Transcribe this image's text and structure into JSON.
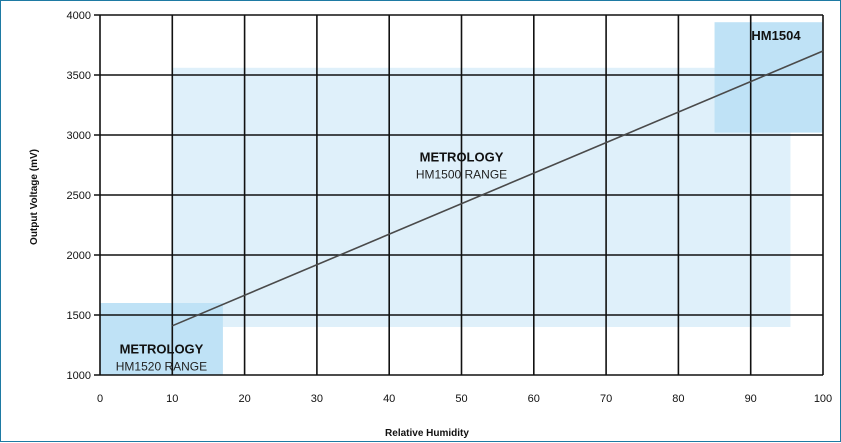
{
  "chart_data": {
    "type": "line",
    "xlabel": "Relative Humidity",
    "ylabel": "Output Voltage (mV)",
    "xlim": [
      0,
      100
    ],
    "ylim": [
      1000,
      4000
    ],
    "x_ticks": [
      0,
      10,
      20,
      30,
      40,
      50,
      60,
      70,
      80,
      90,
      100
    ],
    "y_ticks": [
      1000,
      1500,
      2000,
      2500,
      3000,
      3500,
      4000
    ],
    "grid": true,
    "series": [
      {
        "x": [
          10,
          100
        ],
        "y": [
          1410,
          3700
        ],
        "color": "#4a4a4a"
      }
    ],
    "regions": [
      {
        "x_range": [
          10,
          95.5
        ],
        "y_range": [
          1400,
          3560
        ],
        "label_bold": "METROLOGY",
        "label": "HM1500 RANGE",
        "label_x": 50,
        "label_y": 2780,
        "color": "#dff0fa"
      },
      {
        "x_range": [
          0,
          17
        ],
        "y_range": [
          1000,
          1600
        ],
        "label_bold": "METROLOGY",
        "label": "HM1520 RANGE",
        "label_x": 8.5,
        "label_y": 1180,
        "color": "#bfe2f6"
      },
      {
        "x_range": [
          85,
          100
        ],
        "y_range": [
          3020,
          3940
        ],
        "label_bold": "HM1504",
        "label": "",
        "label_x": 93.5,
        "label_y": 3790,
        "color": "#bfe2f6"
      }
    ]
  }
}
